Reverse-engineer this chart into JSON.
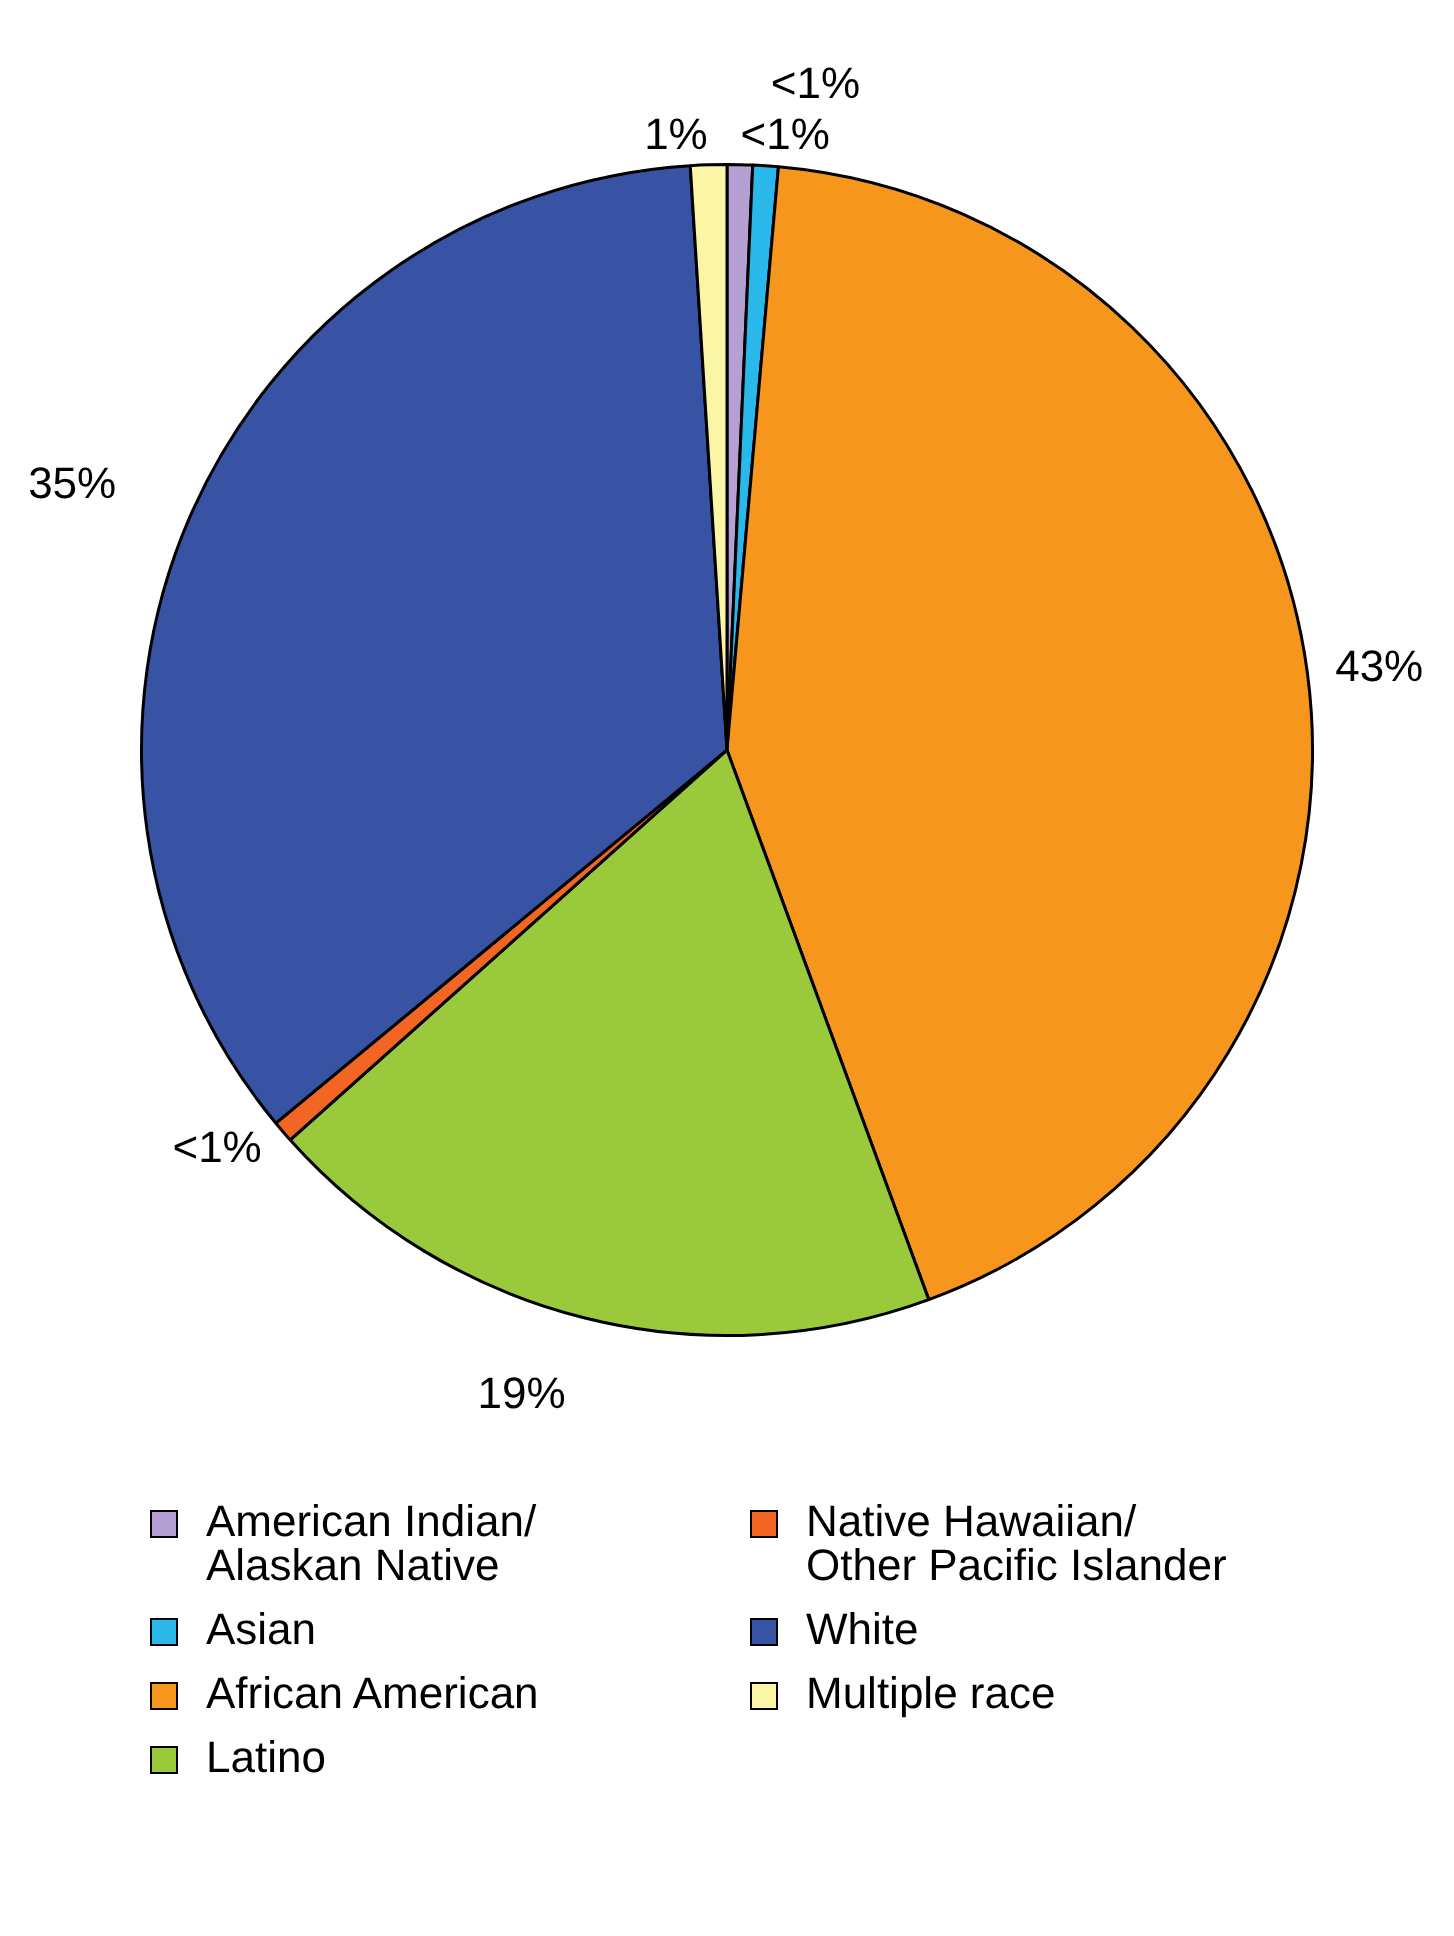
{
  "chart_data": {
    "type": "pie",
    "categories": [
      "American Indian/\nAlaskan Native",
      "Asian",
      "African American",
      "Latino",
      "Native Hawaiian/\nOther Pacific Islander",
      "White",
      "Multiple race"
    ],
    "values": [
      0.7,
      0.7,
      43,
      19,
      0.6,
      35,
      1
    ],
    "value_labels": [
      "<1%",
      "<1%",
      "43%",
      "19%",
      "<1%",
      "35%",
      "1%"
    ],
    "colors": [
      "#b4a0d2",
      "#2ab7ea",
      "#f7961d",
      "#9bc93c",
      "#f26522",
      "#3953a4",
      "#fbf5a6"
    ],
    "legend": "bottom"
  }
}
